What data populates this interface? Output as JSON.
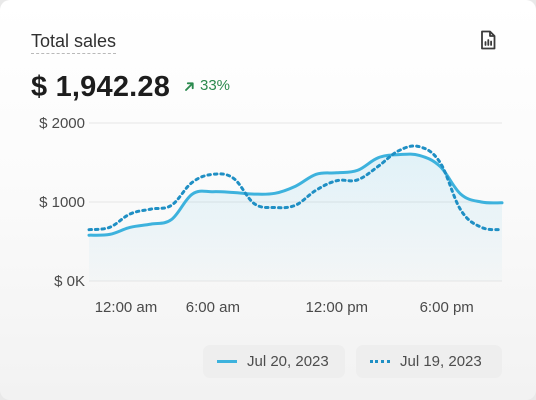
{
  "card": {
    "title": "Total sales",
    "total": "$ 1,942.28",
    "change": "33%",
    "export_icon": "report-document-icon",
    "change_icon": "arrow-up-right-icon"
  },
  "colors": {
    "current_series": "#3db2dd",
    "previous_series": "#1f8fc4",
    "positive": "#2b8a4e"
  },
  "chart_data": {
    "type": "line",
    "title": "",
    "xlabel": "",
    "ylabel": "",
    "ylim": [
      0,
      2000
    ],
    "y_ticks": [
      {
        "value": 0,
        "label": "$ 0K"
      },
      {
        "value": 1000,
        "label": "$ 1000"
      },
      {
        "value": 2000,
        "label": "$ 2000"
      }
    ],
    "x_ticks": [
      {
        "value": 0,
        "label": "12:00 am"
      },
      {
        "value": 6,
        "label": "6:00 am"
      },
      {
        "value": 12,
        "label": "12:00 pm"
      },
      {
        "value": 18,
        "label": "6:00 pm"
      }
    ],
    "x_range": [
      0,
      20
    ],
    "grid": true,
    "legend_position": "bottom-right",
    "series": [
      {
        "name": "Jul 20, 2023",
        "style": "solid",
        "x": [
          0,
          1,
          2,
          3,
          4,
          5,
          6,
          7,
          8,
          9,
          10,
          11,
          12,
          13,
          14,
          15,
          16,
          17,
          18,
          19,
          20
        ],
        "values": [
          580,
          590,
          680,
          720,
          780,
          1100,
          1130,
          1120,
          1100,
          1110,
          1200,
          1350,
          1370,
          1400,
          1560,
          1600,
          1590,
          1450,
          1100,
          1000,
          990
        ]
      },
      {
        "name": "Jul 19, 2023",
        "style": "dotted",
        "x": [
          0,
          1,
          2,
          3,
          4,
          5,
          6,
          7,
          8,
          9,
          10,
          11,
          12,
          13,
          14,
          15,
          16,
          17,
          18,
          19,
          20
        ],
        "values": [
          650,
          680,
          850,
          910,
          960,
          1250,
          1350,
          1300,
          980,
          930,
          960,
          1150,
          1270,
          1280,
          1450,
          1650,
          1700,
          1500,
          900,
          680,
          650
        ]
      }
    ]
  }
}
